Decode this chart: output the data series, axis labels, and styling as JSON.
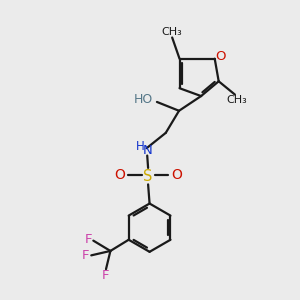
{
  "background_color": "#ebebeb",
  "bond_color": "#1a1a1a",
  "oxygen_color": "#cc1100",
  "nitrogen_color": "#1133cc",
  "sulfur_color": "#ccaa00",
  "fluorine_color": "#cc44aa",
  "oh_color": "#557788",
  "figsize": [
    3.0,
    3.0
  ],
  "dpi": 100,
  "xlim": [
    0,
    10
  ],
  "ylim": [
    0,
    10
  ]
}
